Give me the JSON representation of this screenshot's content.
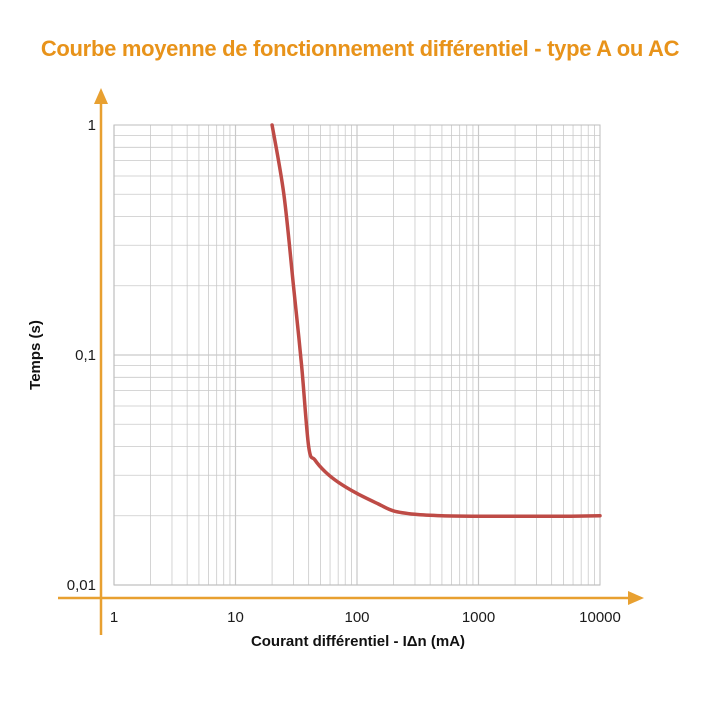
{
  "colors": {
    "title": "#E8931A",
    "axis": "#E8A030",
    "grid": "#C9C9C9",
    "curve": "#BE4B46"
  },
  "chart_data": {
    "type": "line",
    "title": "Courbe moyenne de fonctionnement différentiel - type A ou AC",
    "xlabel": "Courant différentiel - IΔn (mA)",
    "ylabel": "Temps (s)",
    "xscale": "log",
    "yscale": "log",
    "xlim": [
      1,
      10000
    ],
    "ylim": [
      0.01,
      1
    ],
    "grid": true,
    "x_ticks": [
      {
        "value": 1,
        "label": "1"
      },
      {
        "value": 10,
        "label": "10"
      },
      {
        "value": 100,
        "label": "100"
      },
      {
        "value": 1000,
        "label": "1000"
      },
      {
        "value": 10000,
        "label": "10000"
      }
    ],
    "y_ticks": [
      {
        "value": 0.01,
        "label": "0,01"
      },
      {
        "value": 0.1,
        "label": "0,1"
      },
      {
        "value": 1,
        "label": "1"
      }
    ],
    "series": [
      {
        "x": [
          20,
          25,
          30,
          35,
          40,
          45,
          55,
          70,
          100,
          150,
          200,
          300,
          500,
          1000,
          2000,
          5000,
          10000
        ],
        "y": [
          1,
          0.5,
          0.2,
          0.09,
          0.04,
          0.035,
          0.031,
          0.028,
          0.025,
          0.0225,
          0.021,
          0.0203,
          0.02,
          0.0199,
          0.0199,
          0.0199,
          0.02
        ]
      }
    ]
  }
}
